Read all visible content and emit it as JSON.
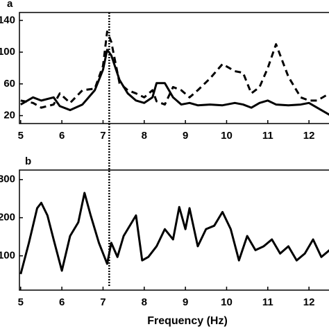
{
  "chart_data": [
    {
      "type": "line",
      "panel_label": "a",
      "x": [
        5,
        5.3,
        5.5,
        5.8,
        5.95,
        6.2,
        6.5,
        6.8,
        7.0,
        7.1,
        7.2,
        7.4,
        7.6,
        7.8,
        8.0,
        8.2,
        8.3,
        8.5,
        8.7,
        8.9,
        9.1,
        9.3,
        9.6,
        9.9,
        10.2,
        10.4,
        10.6,
        10.8,
        11.0,
        11.2,
        11.5,
        11.8,
        12.0,
        12.2,
        12.5
      ],
      "series": [
        {
          "color": "#000000",
          "style": "solid",
          "values": [
            34,
            43,
            39,
            43,
            32,
            27,
            34,
            52,
            78,
            103,
            96,
            65,
            48,
            39,
            36,
            43,
            61,
            61,
            43,
            34,
            36,
            33,
            34,
            33,
            36,
            34,
            30,
            36,
            39,
            34,
            33,
            34,
            36,
            30,
            21
          ]
        },
        {
          "color": "#000000",
          "style": "dashed",
          "values": [
            39,
            36,
            30,
            34,
            48,
            36,
            52,
            54,
            83,
            126,
            113,
            61,
            52,
            48,
            43,
            52,
            38,
            34,
            56,
            52,
            43,
            52,
            67,
            85,
            76,
            74,
            48,
            56,
            80,
            110,
            69,
            43,
            39,
            39,
            48
          ]
        }
      ],
      "xlim": [
        4.97,
        12.52
      ],
      "xticks": [
        5,
        6,
        7,
        8,
        9,
        10,
        11,
        12
      ],
      "ylim": [
        10,
        150
      ],
      "yticks": [
        20,
        60,
        100,
        140
      ],
      "vline": 7.15
    },
    {
      "type": "line",
      "panel_label": "b",
      "x": [
        5.0,
        5.2,
        5.4,
        5.5,
        5.65,
        5.8,
        6.0,
        6.2,
        6.4,
        6.55,
        6.7,
        6.9,
        7.1,
        7.2,
        7.35,
        7.5,
        7.7,
        7.8,
        7.95,
        8.1,
        8.3,
        8.5,
        8.7,
        8.85,
        9.0,
        9.1,
        9.3,
        9.5,
        9.7,
        9.9,
        10.1,
        10.3,
        10.5,
        10.7,
        10.9,
        11.1,
        11.3,
        11.5,
        11.7,
        11.9,
        12.1,
        12.3,
        12.5
      ],
      "series": [
        {
          "color": "#000000",
          "style": "solid",
          "values": [
            52,
            134,
            225,
            239,
            206,
            143,
            61,
            152,
            188,
            265,
            206,
            134,
            79,
            134,
            97,
            152,
            188,
            206,
            88,
            97,
            125,
            170,
            143,
            228,
            170,
            225,
            125,
            170,
            179,
            215,
            170,
            88,
            152,
            115,
            125,
            143,
            106,
            125,
            88,
            106,
            143,
            97,
            115
          ]
        }
      ],
      "xlim": [
        4.97,
        12.52
      ],
      "xticks": [
        5,
        6,
        7,
        8,
        9,
        10,
        11,
        12
      ],
      "ylim": [
        10,
        325
      ],
      "yticks": [
        100,
        200,
        300
      ],
      "vline": 7.15,
      "xlabel": "Frequency (Hz)"
    }
  ]
}
